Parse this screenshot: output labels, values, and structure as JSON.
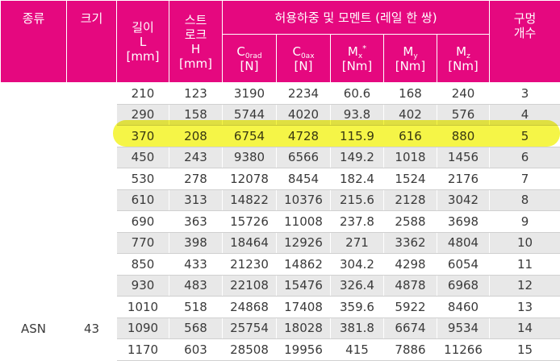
{
  "header": {
    "kind": "종류",
    "size": "크기",
    "length": [
      "길이",
      "L",
      "[mm]"
    ],
    "stroke": [
      "스트",
      "로크",
      "H",
      "[mm]"
    ],
    "load_group": "허용하중 및 모멘트 (레일 한 쌍)",
    "c0rad": {
      "main": "C",
      "sub": "0rad",
      "unit": "[N]"
    },
    "c0ax": {
      "main": "C",
      "sub": "0ax",
      "unit": "[N]"
    },
    "mx": {
      "main": "M",
      "sub": "x",
      "sup": "*",
      "unit": "[Nm]"
    },
    "my": {
      "main": "M",
      "sub": "y",
      "unit": "[Nm]"
    },
    "mz": {
      "main": "M",
      "sub": "z",
      "unit": "[Nm]"
    },
    "holes": [
      "구멍",
      "개수"
    ]
  },
  "type_value": "ASN",
  "size_value": "43",
  "highlight_color": "#f2f200",
  "header_color": "#e5087f",
  "rows": [
    [
      "210",
      "123",
      "3190",
      "2234",
      "60.6",
      "168",
      "240",
      "3"
    ],
    [
      "290",
      "158",
      "5744",
      "4020",
      "93.8",
      "402",
      "576",
      "4"
    ],
    [
      "370",
      "208",
      "6754",
      "4728",
      "115.9",
      "616",
      "880",
      "5"
    ],
    [
      "450",
      "243",
      "9380",
      "6566",
      "149.2",
      "1018",
      "1456",
      "6"
    ],
    [
      "530",
      "278",
      "12078",
      "8454",
      "182.4",
      "1524",
      "2176",
      "7"
    ],
    [
      "610",
      "313",
      "14822",
      "10376",
      "215.6",
      "2128",
      "3042",
      "8"
    ],
    [
      "690",
      "363",
      "15726",
      "11008",
      "237.8",
      "2588",
      "3698",
      "9"
    ],
    [
      "770",
      "398",
      "18464",
      "12926",
      "271",
      "3362",
      "4804",
      "10"
    ],
    [
      "850",
      "433",
      "21230",
      "14862",
      "304.2",
      "4298",
      "6054",
      "11"
    ],
    [
      "930",
      "483",
      "22108",
      "15476",
      "326.4",
      "4878",
      "6968",
      "12"
    ],
    [
      "1010",
      "518",
      "24868",
      "17408",
      "359.6",
      "5922",
      "8460",
      "13"
    ],
    [
      "1090",
      "568",
      "25754",
      "18028",
      "381.8",
      "6674",
      "9534",
      "14"
    ],
    [
      "1170",
      "603",
      "28508",
      "19956",
      "415",
      "7886",
      "11266",
      "15"
    ]
  ]
}
